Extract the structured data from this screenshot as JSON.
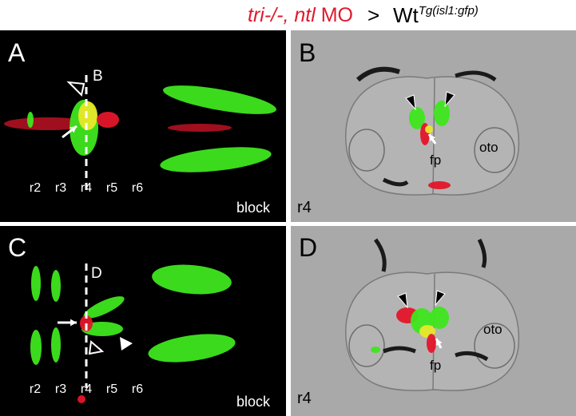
{
  "header": {
    "genotype": "tri-/-,",
    "morpholino_gene": "ntl",
    "morpholino": "MO",
    "arrow": ">",
    "host": "Wt",
    "transgene": "Tg(isl1:gfp)"
  },
  "panels": [
    {
      "label": "A",
      "section_marker": "B",
      "rhombomeres": [
        "r2",
        "r3",
        "r4",
        "r5",
        "r6"
      ],
      "condition": "block"
    },
    {
      "label": "B",
      "floor_plate": "fp",
      "otic": "oto",
      "level": "r4"
    },
    {
      "label": "C",
      "section_marker": "D",
      "rhombomeres": [
        "r2",
        "r3",
        "r4",
        "r5",
        "r6"
      ],
      "condition": "block"
    },
    {
      "label": "D",
      "floor_plate": "fp",
      "otic": "oto",
      "level": "r4"
    }
  ]
}
